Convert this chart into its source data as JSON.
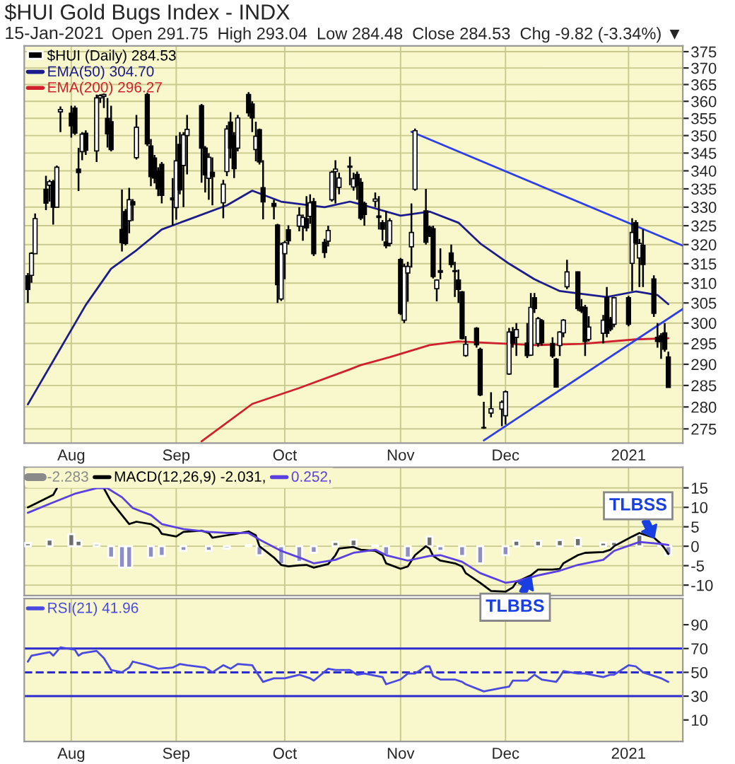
{
  "chart_data": [
    {
      "type": "candlestick",
      "title": "$HUI Gold Bugs Index - INDX",
      "subtitle": "15-Jan-2021",
      "annotations": [
        "Open 291.75  High 293.04  Low 284.48  Close 284.53  Chg -9.82 (-3.34%) ▼"
      ],
      "log": "y",
      "grid": true,
      "legend": "top left",
      "xlim": [
        "2020-07-21",
        "2021-01-19"
      ],
      "xticks": [
        {
          "value": "2020-08-03",
          "label": "Aug"
        },
        {
          "value": "2020-09-01",
          "label": "Sep"
        },
        {
          "value": "2020-10-01",
          "label": "Oct"
        },
        {
          "value": "2020-11-02",
          "label": "Nov"
        },
        {
          "value": "2020-12-01",
          "label": "Dec"
        },
        {
          "value": "2021-01-04",
          "label": "2021"
        }
      ],
      "ylim": [
        271.8,
        376.8
      ],
      "yticks": [
        275,
        280,
        285,
        290,
        295,
        300,
        305,
        310,
        315,
        320,
        325,
        330,
        335,
        340,
        345,
        350,
        355,
        360,
        365,
        370,
        375
      ],
      "series": [
        {
          "name": "$HUI (Daily) 284.53",
          "color": "#000000",
          "x": [
            "2020-07-22",
            "2020-07-23",
            "2020-07-24",
            "2020-07-27",
            "2020-07-28",
            "2020-07-29",
            "2020-07-30",
            "2020-07-31",
            "2020-08-03",
            "2020-08-04",
            "2020-08-05",
            "2020-08-06",
            "2020-08-07",
            "2020-08-10",
            "2020-08-11",
            "2020-08-12",
            "2020-08-13",
            "2020-08-14",
            "2020-08-17",
            "2020-08-18",
            "2020-08-19",
            "2020-08-20",
            "2020-08-21",
            "2020-08-24",
            "2020-08-25",
            "2020-08-26",
            "2020-08-27",
            "2020-08-28",
            "2020-08-31",
            "2020-09-01",
            "2020-09-02",
            "2020-09-03",
            "2020-09-04",
            "2020-09-08",
            "2020-09-09",
            "2020-09-10",
            "2020-09-11",
            "2020-09-14",
            "2020-09-15",
            "2020-09-16",
            "2020-09-17",
            "2020-09-18",
            "2020-09-21",
            "2020-09-22",
            "2020-09-23",
            "2020-09-24",
            "2020-09-25",
            "2020-09-28",
            "2020-09-29",
            "2020-09-30",
            "2020-10-01",
            "2020-10-02",
            "2020-10-05",
            "2020-10-06",
            "2020-10-07",
            "2020-10-08",
            "2020-10-09",
            "2020-10-12",
            "2020-10-13",
            "2020-10-14",
            "2020-10-15",
            "2020-10-16",
            "2020-10-19",
            "2020-10-20",
            "2020-10-21",
            "2020-10-22",
            "2020-10-23",
            "2020-10-26",
            "2020-10-27",
            "2020-10-28",
            "2020-10-29",
            "2020-10-30",
            "2020-11-02",
            "2020-11-03",
            "2020-11-04",
            "2020-11-05",
            "2020-11-06",
            "2020-11-09",
            "2020-11-10",
            "2020-11-11",
            "2020-11-12",
            "2020-11-13",
            "2020-11-16",
            "2020-11-17",
            "2020-11-18",
            "2020-11-19",
            "2020-11-20",
            "2020-11-23",
            "2020-11-24",
            "2020-11-25",
            "2020-11-27",
            "2020-11-30",
            "2020-12-01",
            "2020-12-02",
            "2020-12-03",
            "2020-12-04",
            "2020-12-07",
            "2020-12-08",
            "2020-12-09",
            "2020-12-10",
            "2020-12-11",
            "2020-12-14",
            "2020-12-15",
            "2020-12-16",
            "2020-12-17",
            "2020-12-18",
            "2020-12-21",
            "2020-12-22",
            "2020-12-23",
            "2020-12-24",
            "2020-12-28",
            "2020-12-29",
            "2020-12-30",
            "2020-12-31",
            "2021-01-04",
            "2021-01-05",
            "2021-01-06",
            "2021-01-07",
            "2021-01-08",
            "2021-01-11",
            "2021-01-12",
            "2021-01-13",
            "2021-01-14",
            "2021-01-15"
          ],
          "ohlc": [
            [
              311.9,
              312.6,
              305.0,
              308.4
            ],
            [
              312.0,
              318.0,
              310.1,
              317.7
            ],
            [
              317.6,
              328.3,
              317.6,
              326.9
            ],
            [
              334.9,
              338.6,
              329.2,
              331.1
            ],
            [
              336.0,
              337.5,
              331.5,
              337.0
            ],
            [
              337.0,
              337.5,
              325.3,
              330.0
            ],
            [
              330.0,
              341.5,
              330.0,
              341.0
            ],
            [
              356.9,
              358.5,
              351.0,
              357.6
            ],
            [
              356.5,
              358.7,
              349.4,
              352.8
            ],
            [
              358.0,
              358.7,
              350.2,
              350.7
            ],
            [
              340.5,
              346.5,
              334.4,
              339.5
            ],
            [
              345.4,
              351.0,
              343.0,
              350.4
            ],
            [
              350.7,
              351.5,
              344.5,
              345.8
            ],
            [
              345.6,
              362.0,
              342.5,
              361.0
            ],
            [
              361.0,
              362.1,
              359.5,
              361.7
            ],
            [
              361.5,
              362.3,
              358.0,
              362.0
            ],
            [
              355.0,
              361.0,
              346.6,
              350.5
            ],
            [
              354.0,
              358.7,
              345.5,
              346.0
            ],
            [
              324.0,
              334.8,
              318.2,
              320.5
            ],
            [
              328.8,
              329.5,
              319.8,
              320.3
            ],
            [
              326.3,
              335.3,
              323.0,
              332.0
            ],
            [
              331.5,
              332.2,
              326.3,
              330.6
            ],
            [
              343.7,
              356.0,
              343.2,
              352.4
            ],
            [
              362.0,
              362.5,
              347.0,
              347.6
            ],
            [
              347.0,
              349.0,
              335.7,
              338.4
            ],
            [
              343.6,
              344.5,
              336.5,
              338.0
            ],
            [
              340.0,
              341.0,
              333.0,
              335.0
            ],
            [
              341.8,
              342.5,
              331.0,
              333.2
            ],
            [
              332.5,
              338.0,
              325.0,
              332.0
            ],
            [
              329.9,
              350.0,
              326.6,
              342.8
            ],
            [
              347.5,
              351.0,
              333.5,
              334.7
            ],
            [
              341.5,
              351.0,
              330.0,
              350.2
            ],
            [
              350.0,
              356.0,
              339.0,
              351.8
            ],
            [
              358.7,
              359.2,
              336.7,
              346.4
            ],
            [
              346.4,
              347.0,
              334.0,
              338.9
            ],
            [
              337.9,
              345.0,
              332.0,
              343.8
            ],
            [
              339.6,
              343.8,
              330.5,
              338.4
            ],
            [
              331.2,
              337.5,
              327.0,
              336.3
            ],
            [
              339.8,
              353.0,
              338.5,
              351.9
            ],
            [
              353.9,
              356.8,
              343.5,
              346.4
            ],
            [
              350.0,
              351.0,
              338.0,
              340.6
            ],
            [
              346.4,
              356.0,
              345.5,
              355.1
            ],
            [
              362.0,
              362.7,
              355.5,
              356.6
            ],
            [
              359.2,
              360.0,
              351.0,
              355.1
            ],
            [
              346.0,
              354.0,
              342.7,
              349.8
            ],
            [
              351.7,
              352.0,
              341.8,
              342.5
            ],
            [
              335.3,
              343.0,
              326.7,
              331.4
            ],
            [
              331.0,
              332.0,
              326.7,
              330.2
            ],
            [
              325.2,
              325.5,
              305.0,
              309.6
            ],
            [
              306.0,
              320.5,
              305.5,
              320.0
            ],
            [
              317.6,
              321.0,
              311.0,
              320.5
            ],
            [
              323.9,
              325.1,
              320.0,
              321.0
            ],
            [
              324.9,
              330.0,
              323.5,
              327.8
            ],
            [
              324.9,
              328.0,
              321.0,
              327.2
            ],
            [
              326.9,
              333.0,
              323.5,
              324.4
            ],
            [
              327.5,
              333.5,
              325.5,
              331.2
            ],
            [
              331.5,
              332.5,
              317.0,
              317.6
            ],
            [
              320.6,
              321.5,
              316.5,
              317.9
            ],
            [
              320.9,
              325.0,
              319.5,
              323.7
            ],
            [
              332.0,
              340.0,
              331.5,
              339.6
            ],
            [
              339.8,
              343.0,
              331.0,
              340.5
            ],
            [
              335.4,
              339.5,
              333.5,
              338.0
            ],
            [
              341.0,
              344.0,
              336.0,
              341.3
            ],
            [
              335.5,
              339.5,
              334.5,
              337.8
            ],
            [
              339.0,
              339.8,
              332.0,
              336.0
            ],
            [
              336.8,
              338.0,
              326.5,
              327.0
            ],
            [
              331.0,
              331.5,
              325.0,
              328.0
            ],
            [
              331.6,
              334.0,
              330.0,
              332.2
            ],
            [
              327.6,
              333.0,
              324.0,
              327.2
            ],
            [
              325.8,
              326.5,
              321.0,
              324.1
            ],
            [
              320.7,
              329.0,
              319.0,
              319.7
            ],
            [
              320.3,
              327.0,
              319.5,
              326.3
            ],
            [
              316.1,
              316.5,
              302.0,
              302.4
            ],
            [
              300.7,
              315.0,
              300.0,
              314.3
            ],
            [
              312.6,
              315.5,
              305.3,
              314.3
            ],
            [
              319.4,
              331.0,
              314.0,
              323.2
            ],
            [
              334.9,
              352.0,
              334.5,
              351.4
            ],
            [
              329.0,
              335.0,
              320.0,
              320.6
            ],
            [
              324.6,
              325.0,
              322.0,
              322.2
            ],
            [
              324.2,
              325.0,
              311.2,
              311.7
            ],
            [
              308.6,
              311.0,
              305.4,
              310.8
            ],
            [
              313.2,
              319.0,
              311.0,
              312.8
            ],
            [
              317.8,
              320.0,
              314.0,
              314.8
            ],
            [
              313.0,
              315.5,
              306.5,
              313.2
            ],
            [
              310.8,
              313.5,
              305.0,
              308.4
            ],
            [
              307.8,
              308.0,
              296.0,
              296.2
            ],
            [
              292.1,
              296.8,
              291.8,
              294.8
            ],
            [
              298.7,
              299.0,
              294.0,
              294.7
            ],
            [
              293.6,
              294.0,
              282.5,
              282.8
            ],
            [
              275.2,
              281.2,
              275.0,
              275.3
            ],
            [
              278.6,
              283.4,
              277.6,
              279.6
            ],
            [
              279.5,
              281.5,
              275.6,
              281.1
            ],
            [
              278.0,
              283.8,
              276.0,
              283.5
            ],
            [
              287.7,
              298.8,
              287.5,
              297.8
            ],
            [
              297.8,
              299.0,
              294.0,
              295.1
            ],
            [
              296.5,
              300.0,
              292.0,
              298.4
            ],
            [
              295.1,
              300.0,
              291.5,
              292.1
            ],
            [
              292.2,
              307.5,
              292.0,
              303.9
            ],
            [
              306.3,
              307.5,
              302.5,
              303.6
            ],
            [
              295.0,
              301.5,
              294.2,
              301.1
            ],
            [
              300.6,
              301.0,
              294.5,
              295.2
            ],
            [
              295.0,
              296.5,
              291.5,
              292.0
            ],
            [
              291.2,
              291.5,
              284.5,
              284.6
            ],
            [
              294.5,
              298.0,
              292.0,
              297.8
            ],
            [
              297.6,
              301.0,
              296.5,
              300.7
            ],
            [
              309.1,
              316.0,
              308.5,
              312.9
            ],
            [
              312.9,
              313.0,
              303.0,
              303.6
            ],
            [
              304.0,
              306.0,
              302.5,
              303.0
            ],
            [
              303.9,
              304.5,
              292.0,
              295.5
            ],
            [
              296.0,
              301.7,
              295.5,
              299.0
            ],
            [
              297.5,
              302.0,
              295.0,
              300.7
            ],
            [
              306.3,
              309.0,
              296.5,
              297.5
            ],
            [
              300.9,
              301.5,
              298.0,
              298.5
            ],
            [
              299.7,
              306.5,
              299.0,
              306.3
            ],
            [
              306.3,
              306.8,
              299.2,
              299.7
            ],
            [
              315.1,
              327.0,
              308.0,
              323.2
            ],
            [
              325.8,
              326.5,
              320.0,
              320.5
            ],
            [
              316.5,
              321.5,
              309.0,
              320.3
            ],
            [
              319.8,
              324.0,
              309.0,
              314.8
            ],
            [
              311.1,
              312.0,
              301.5,
              302.4
            ],
            [
              296.5,
              300.0,
              294.0,
              295.5
            ],
            [
              296.9,
              297.5,
              291.3,
              295.4
            ],
            [
              297.6,
              300.0,
              293.0,
              293.6
            ],
            [
              291.75,
              293.04,
              284.48,
              284.53
            ]
          ]
        },
        {
          "name": "EMA(50) 304.70",
          "type": "line",
          "color": "#1c1c8c",
          "x": [
            "2020-07-22",
            "2020-08-07",
            "2020-08-14",
            "2020-08-21",
            "2020-08-28",
            "2020-09-04",
            "2020-09-15",
            "2020-09-22",
            "2020-09-30",
            "2020-10-12",
            "2020-10-19",
            "2020-10-23",
            "2020-11-02",
            "2020-11-10",
            "2020-11-18",
            "2020-11-24",
            "2020-12-02",
            "2020-12-09",
            "2020-12-16",
            "2020-12-22",
            "2020-12-29",
            "2021-01-06",
            "2021-01-12",
            "2021-01-15"
          ],
          "values": [
            280.6,
            304.5,
            313.7,
            318.5,
            324.0,
            326.5,
            330.5,
            334.5,
            331.5,
            330.0,
            331.5,
            330.5,
            327.7,
            328.8,
            325.8,
            320.3,
            315.0,
            311.0,
            308.0,
            307.3,
            306.5,
            307.9,
            307.0,
            304.7
          ]
        },
        {
          "type": "line",
          "name": "EMA(200) 296.27",
          "color": "#d0202e",
          "x": [
            "2020-09-08",
            "2020-09-22",
            "2020-10-05",
            "2020-10-19",
            "2020-10-22",
            "2020-10-30",
            "2020-11-10",
            "2020-11-18",
            "2020-11-25",
            "2020-12-09",
            "2020-12-22",
            "2021-01-06",
            "2021-01-15"
          ],
          "values": [
            272.2,
            280.7,
            284.4,
            288.8,
            289.8,
            291.7,
            294.6,
            295.5,
            295.2,
            294.6,
            294.9,
            296.0,
            296.27
          ]
        },
        {
          "type": "line",
          "color": "#2f3fe8",
          "x": [
            "2020-11-05",
            "2021-01-19"
          ],
          "values": [
            351.1,
            319.7
          ]
        },
        {
          "type": "line",
          "color": "#2f3fe8",
          "x": [
            "2020-11-25",
            "2021-01-19"
          ],
          "values": [
            272.4,
            303.5
          ]
        }
      ]
    },
    {
      "type": "line",
      "grid": true,
      "legend": "top left",
      "tick_labels": "y",
      "xlim": [
        "2020-07-21",
        "2021-01-19"
      ],
      "xticks": [
        {
          "value": "2020-08-03",
          "label": null
        },
        {
          "value": "2020-09-01",
          "label": null
        },
        {
          "value": "2020-10-01",
          "label": null
        },
        {
          "value": "2020-11-02",
          "label": null
        },
        {
          "value": "2020-12-01",
          "label": null
        },
        {
          "value": "2021-01-04",
          "label": null
        }
      ],
      "ylim": [
        -12.7,
        20.3
      ],
      "yticks": [
        -10,
        -5,
        0,
        5,
        10,
        15
      ],
      "annotations": [
        {
          "text": "TLBSS",
          "x": "2021-01-11",
          "y": 2.2
        },
        {
          "text": "TLBBS",
          "x": "2020-12-08",
          "y": -8.0
        }
      ],
      "series": [
        {
          "type": "bar",
          "name": "-2.283",
          "color": "#8a8a8a",
          "x": [
            "2020-07-22",
            "2020-07-28",
            "2020-08-03",
            "2020-08-05",
            "2020-08-10",
            "2020-08-14",
            "2020-08-17",
            "2020-08-19",
            "2020-08-25",
            "2020-08-28",
            "2020-09-03",
            "2020-09-10",
            "2020-09-15",
            "2020-09-21",
            "2020-09-24",
            "2020-09-30",
            "2020-10-05",
            "2020-10-09",
            "2020-10-15",
            "2020-10-20",
            "2020-10-26",
            "2020-10-29",
            "2020-11-04",
            "2020-11-10",
            "2020-11-13",
            "2020-11-19",
            "2020-11-24",
            "2020-12-01",
            "2020-12-04",
            "2020-12-10",
            "2020-12-16",
            "2020-12-21",
            "2020-12-28",
            "2020-12-31",
            "2021-01-07",
            "2021-01-13",
            "2021-01-15"
          ],
          "values": [
            0.8,
            1.7,
            3.1,
            1.4,
            0.6,
            -2.9,
            -5.5,
            -5.5,
            -2.9,
            -2.5,
            -1.2,
            -1.2,
            -0.6,
            0.3,
            -2.3,
            -4.6,
            -4.0,
            -1.7,
            1.1,
            1.7,
            0.2,
            -2.3,
            -2.9,
            2.5,
            -1.2,
            -2.5,
            -4.4,
            -2.3,
            1.4,
            1.4,
            1.6,
            2.1,
            0.9,
            1.1,
            2.9,
            0.6,
            -2.3
          ],
          "colors": [
            "#6e6e6e",
            "#6e6e6e",
            "#6e6e6e",
            "#6e6e6e",
            "#6e6e6e",
            "#8e8ec4",
            "#8e8ec4",
            "#8e8ec4",
            "#8e8ec4",
            "#8e8ec4",
            "#8e8ec4",
            "#8e8ec4",
            "#8e8ec4",
            "#6e6e6e",
            "#8e8ec4",
            "#8e8ec4",
            "#8e8ec4",
            "#8e8ec4",
            "#6e6e6e",
            "#6e6e6e",
            "#6e6e6e",
            "#8e8ec4",
            "#8e8ec4",
            "#6e6e6e",
            "#8e8ec4",
            "#8e8ec4",
            "#8e8ec4",
            "#8e8ec4",
            "#6e6e6e",
            "#6e6e6e",
            "#6e6e6e",
            "#6e6e6e",
            "#6e6e6e",
            "#6e6e6e",
            "#6e6e6e",
            "#6e6e6e",
            "#8e8ec4"
          ]
        },
        {
          "name": "MACD(12,26,9) -2.031,",
          "color": "#000000",
          "x": [
            "2020-07-22",
            "2020-07-24",
            "2020-07-29",
            "2020-07-30",
            "2020-08-05",
            "2020-08-12",
            "2020-08-14",
            "2020-08-17",
            "2020-08-19",
            "2020-08-21",
            "2020-08-25",
            "2020-08-27",
            "2020-08-28",
            "2020-09-01",
            "2020-09-03",
            "2020-09-08",
            "2020-09-10",
            "2020-09-11",
            "2020-09-15",
            "2020-09-17",
            "2020-09-21",
            "2020-09-23",
            "2020-09-24",
            "2020-09-28",
            "2020-09-30",
            "2020-10-02",
            "2020-10-05",
            "2020-10-07",
            "2020-10-09",
            "2020-10-13",
            "2020-10-15",
            "2020-10-16",
            "2020-10-20",
            "2020-10-22",
            "2020-10-26",
            "2020-10-28",
            "2020-10-29",
            "2020-11-02",
            "2020-11-04",
            "2020-11-06",
            "2020-11-09",
            "2020-11-10",
            "2020-11-11",
            "2020-11-13",
            "2020-11-17",
            "2020-11-19",
            "2020-11-20",
            "2020-11-24",
            "2020-11-27",
            "2020-12-01",
            "2020-12-03",
            "2020-12-04",
            "2020-12-08",
            "2020-12-10",
            "2020-12-14",
            "2020-12-16",
            "2020-12-17",
            "2020-12-21",
            "2020-12-23",
            "2020-12-28",
            "2020-12-30",
            "2020-12-31",
            "2021-01-05",
            "2021-01-07",
            "2021-01-11",
            "2021-01-13",
            "2021-01-14",
            "2021-01-15"
          ],
          "values": [
            10.0,
            10.9,
            13.2,
            14.9,
            null,
            14.9,
            11.5,
            8.0,
            5.7,
            6.3,
            5.7,
            4.6,
            3.2,
            2.5,
            3.7,
            4.0,
            3.4,
            2.2,
            2.8,
            3.1,
            3.8,
            2.8,
            0.0,
            -2.9,
            -4.8,
            -5.2,
            -4.9,
            -4.8,
            -5.5,
            -4.6,
            -2.3,
            -0.6,
            -0.2,
            -0.9,
            -1.2,
            -2.3,
            -4.4,
            -5.8,
            -5.2,
            -2.3,
            0.0,
            -0.6,
            -2.5,
            -3.7,
            -4.4,
            -5.2,
            -6.9,
            -9.4,
            -11.5,
            -11.7,
            -10.6,
            -9.2,
            -7.5,
            -6.0,
            -6.0,
            -5.8,
            -4.4,
            -2.3,
            -1.7,
            -1.5,
            -0.9,
            0.0,
            2.5,
            3.4,
            2.2,
            0.6,
            -0.6,
            -2.0
          ]
        },
        {
          "name": "0.252,",
          "color": "#5b3fe0",
          "x": [
            "2020-07-22",
            "2020-07-28",
            "2020-08-04",
            "2020-08-10",
            "2020-08-13",
            "2020-08-17",
            "2020-08-20",
            "2020-08-25",
            "2020-08-28",
            "2020-09-03",
            "2020-09-10",
            "2020-09-15",
            "2020-09-21",
            "2020-09-24",
            "2020-09-30",
            "2020-10-05",
            "2020-10-09",
            "2020-10-15",
            "2020-10-20",
            "2020-10-26",
            "2020-10-29",
            "2020-11-04",
            "2020-11-10",
            "2020-11-13",
            "2020-11-19",
            "2020-11-24",
            "2020-12-01",
            "2020-12-04",
            "2020-12-10",
            "2020-12-16",
            "2020-12-21",
            "2020-12-28",
            "2020-12-31",
            "2021-01-07",
            "2021-01-13",
            "2021-01-15"
          ],
          "values": [
            8.6,
            10.9,
            13.5,
            14.9,
            14.9,
            12.6,
            9.8,
            8.0,
            5.7,
            4.4,
            3.7,
            3.4,
            3.4,
            1.7,
            -1.2,
            -2.9,
            -4.4,
            -3.5,
            -1.7,
            -0.9,
            -2.3,
            -3.7,
            -2.5,
            -2.3,
            -4.0,
            -6.9,
            -9.4,
            -9.0,
            -7.5,
            -6.3,
            -4.8,
            -3.5,
            -1.2,
            1.1,
            0.6,
            0.3
          ]
        }
      ]
    },
    {
      "type": "line",
      "grid": "x",
      "legend": "top left",
      "xlim": [
        "2020-07-21",
        "2021-01-19"
      ],
      "xticks": [
        {
          "value": "2020-08-03",
          "label": "Aug"
        },
        {
          "value": "2020-09-01",
          "label": "Sep"
        },
        {
          "value": "2020-10-01",
          "label": "Oct"
        },
        {
          "value": "2020-11-02",
          "label": "Nov"
        },
        {
          "value": "2020-12-01",
          "label": "Dec"
        },
        {
          "value": "2021-01-04",
          "label": "2021"
        }
      ],
      "ylim": [
        -8,
        112
      ],
      "yticks": [
        10,
        30,
        50,
        70,
        90
      ],
      "ref_lines": [
        {
          "axis": "y",
          "value": 70,
          "color": "#2b2bd0",
          "line_style": "solid"
        },
        {
          "axis": "y",
          "value": 50,
          "color": "#2b2bd0",
          "line_style": "dashed"
        },
        {
          "axis": "y",
          "value": 30,
          "color": "#2b2bd0",
          "line_style": "solid"
        }
      ],
      "series": [
        {
          "name": "RSI(21) 41.96",
          "color": "#4a4ae0",
          "x": [
            "2020-07-22",
            "2020-07-23",
            "2020-07-28",
            "2020-07-29",
            "2020-07-31",
            "2020-08-04",
            "2020-08-05",
            "2020-08-06",
            "2020-08-10",
            "2020-08-12",
            "2020-08-14",
            "2020-08-17",
            "2020-08-19",
            "2020-08-20",
            "2020-08-24",
            "2020-08-26",
            "2020-08-27",
            "2020-08-31",
            "2020-09-02",
            "2020-09-04",
            "2020-09-09",
            "2020-09-11",
            "2020-09-14",
            "2020-09-16",
            "2020-09-18",
            "2020-09-22",
            "2020-09-23",
            "2020-09-25",
            "2020-09-28",
            "2020-10-01",
            "2020-10-05",
            "2020-10-06",
            "2020-10-08",
            "2020-10-09",
            "2020-10-13",
            "2020-10-15",
            "2020-10-19",
            "2020-10-21",
            "2020-10-23",
            "2020-10-28",
            "2020-10-29",
            "2020-11-02",
            "2020-11-04",
            "2020-11-06",
            "2020-11-09",
            "2020-11-10",
            "2020-11-11",
            "2020-11-13",
            "2020-11-17",
            "2020-11-19",
            "2020-11-20",
            "2020-11-25",
            "2020-11-30",
            "2020-12-02",
            "2020-12-03",
            "2020-12-07",
            "2020-12-09",
            "2020-12-11",
            "2020-12-15",
            "2020-12-16",
            "2020-12-17",
            "2020-12-21",
            "2020-12-23",
            "2020-12-28",
            "2020-12-30",
            "2020-12-31",
            "2021-01-04",
            "2021-01-06",
            "2021-01-08",
            "2021-01-12",
            "2021-01-13",
            "2021-01-15"
          ],
          "values": [
            59,
            64,
            67,
            64,
            71,
            69,
            64,
            66,
            68,
            62,
            52,
            50,
            54,
            59,
            56,
            54,
            53,
            54,
            57,
            56,
            54,
            50,
            56,
            53,
            57,
            56,
            51,
            42,
            45,
            45,
            48,
            47,
            45,
            43,
            53,
            52,
            52,
            48,
            49,
            46,
            40,
            44,
            49,
            49,
            55,
            55,
            47,
            44,
            44,
            42,
            40,
            34,
            37,
            38,
            43,
            43,
            48,
            44,
            42,
            46,
            51,
            49,
            49,
            46,
            48,
            48,
            56,
            55,
            50,
            46,
            45,
            42
          ]
        }
      ]
    }
  ]
}
